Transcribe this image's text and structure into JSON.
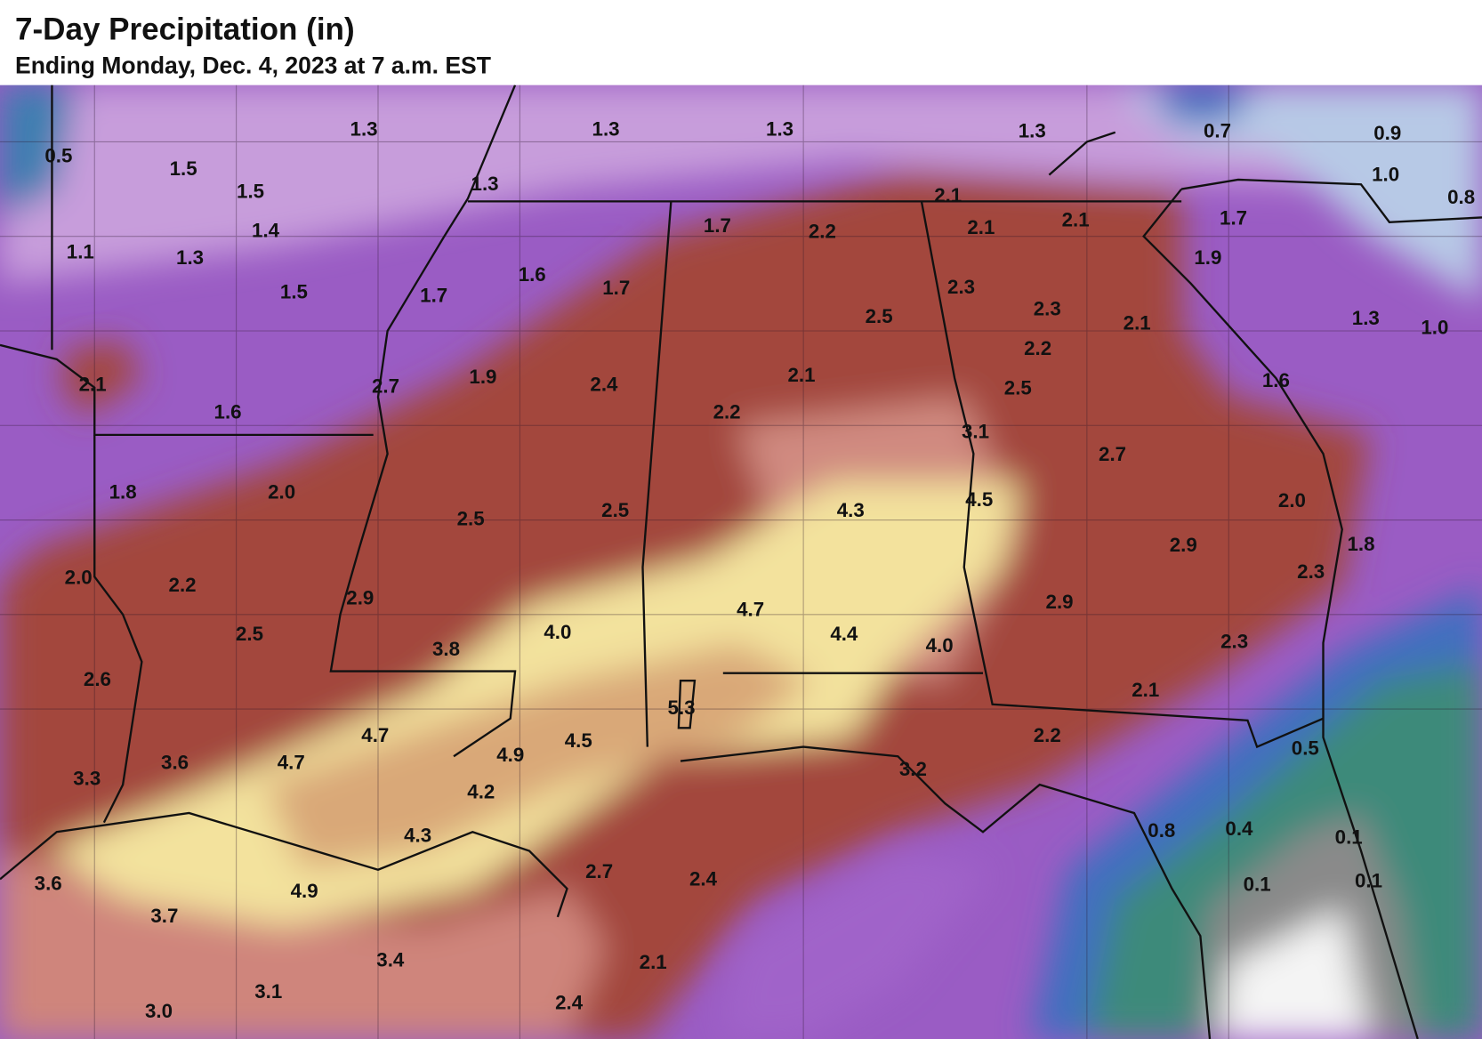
{
  "title": "7-Day Precipitation (in)",
  "subtitle": "Ending Monday, Dec. 4, 2023 at 7 a.m. EST",
  "labels": [
    "1.3",
    "1.3",
    "1.3",
    "1.3",
    "0.7",
    "0.9",
    "0.5",
    "1.5",
    "1.5",
    "1.3",
    "2.1",
    "1.0",
    "0.8",
    "1.4",
    "1.7",
    "2.2",
    "2.1",
    "2.1",
    "1.7",
    "1.1",
    "1.3",
    "1.9",
    "1.5",
    "1.7",
    "1.6",
    "1.7",
    "2.3",
    "2.3",
    "2.5",
    "2.1",
    "1.3",
    "1.0",
    "2.2",
    "2.1",
    "2.7",
    "1.9",
    "2.4",
    "2.1",
    "2.5",
    "1.6",
    "1.6",
    "2.2",
    "3.1",
    "2.7",
    "1.8",
    "2.0",
    "2.5",
    "2.5",
    "4.3",
    "4.5",
    "2.0",
    "2.9",
    "1.8",
    "2.0",
    "2.2",
    "2.3",
    "2.9",
    "2.9",
    "4.7",
    "4.0",
    "4.4",
    "4.0",
    "2.5",
    "3.8",
    "2.3",
    "2.6",
    "5.3",
    "2.1",
    "4.7",
    "4.5",
    "2.2",
    "3.6",
    "4.7",
    "4.9",
    "0.5",
    "3.3",
    "3.2",
    "4.2",
    "4.3",
    "0.8",
    "0.4",
    "0.1",
    "3.6",
    "2.7",
    "2.4",
    "0.1",
    "0.1",
    "4.9",
    "3.7",
    "3.4",
    "2.1",
    "3.1",
    "2.4",
    "3.0"
  ]
}
